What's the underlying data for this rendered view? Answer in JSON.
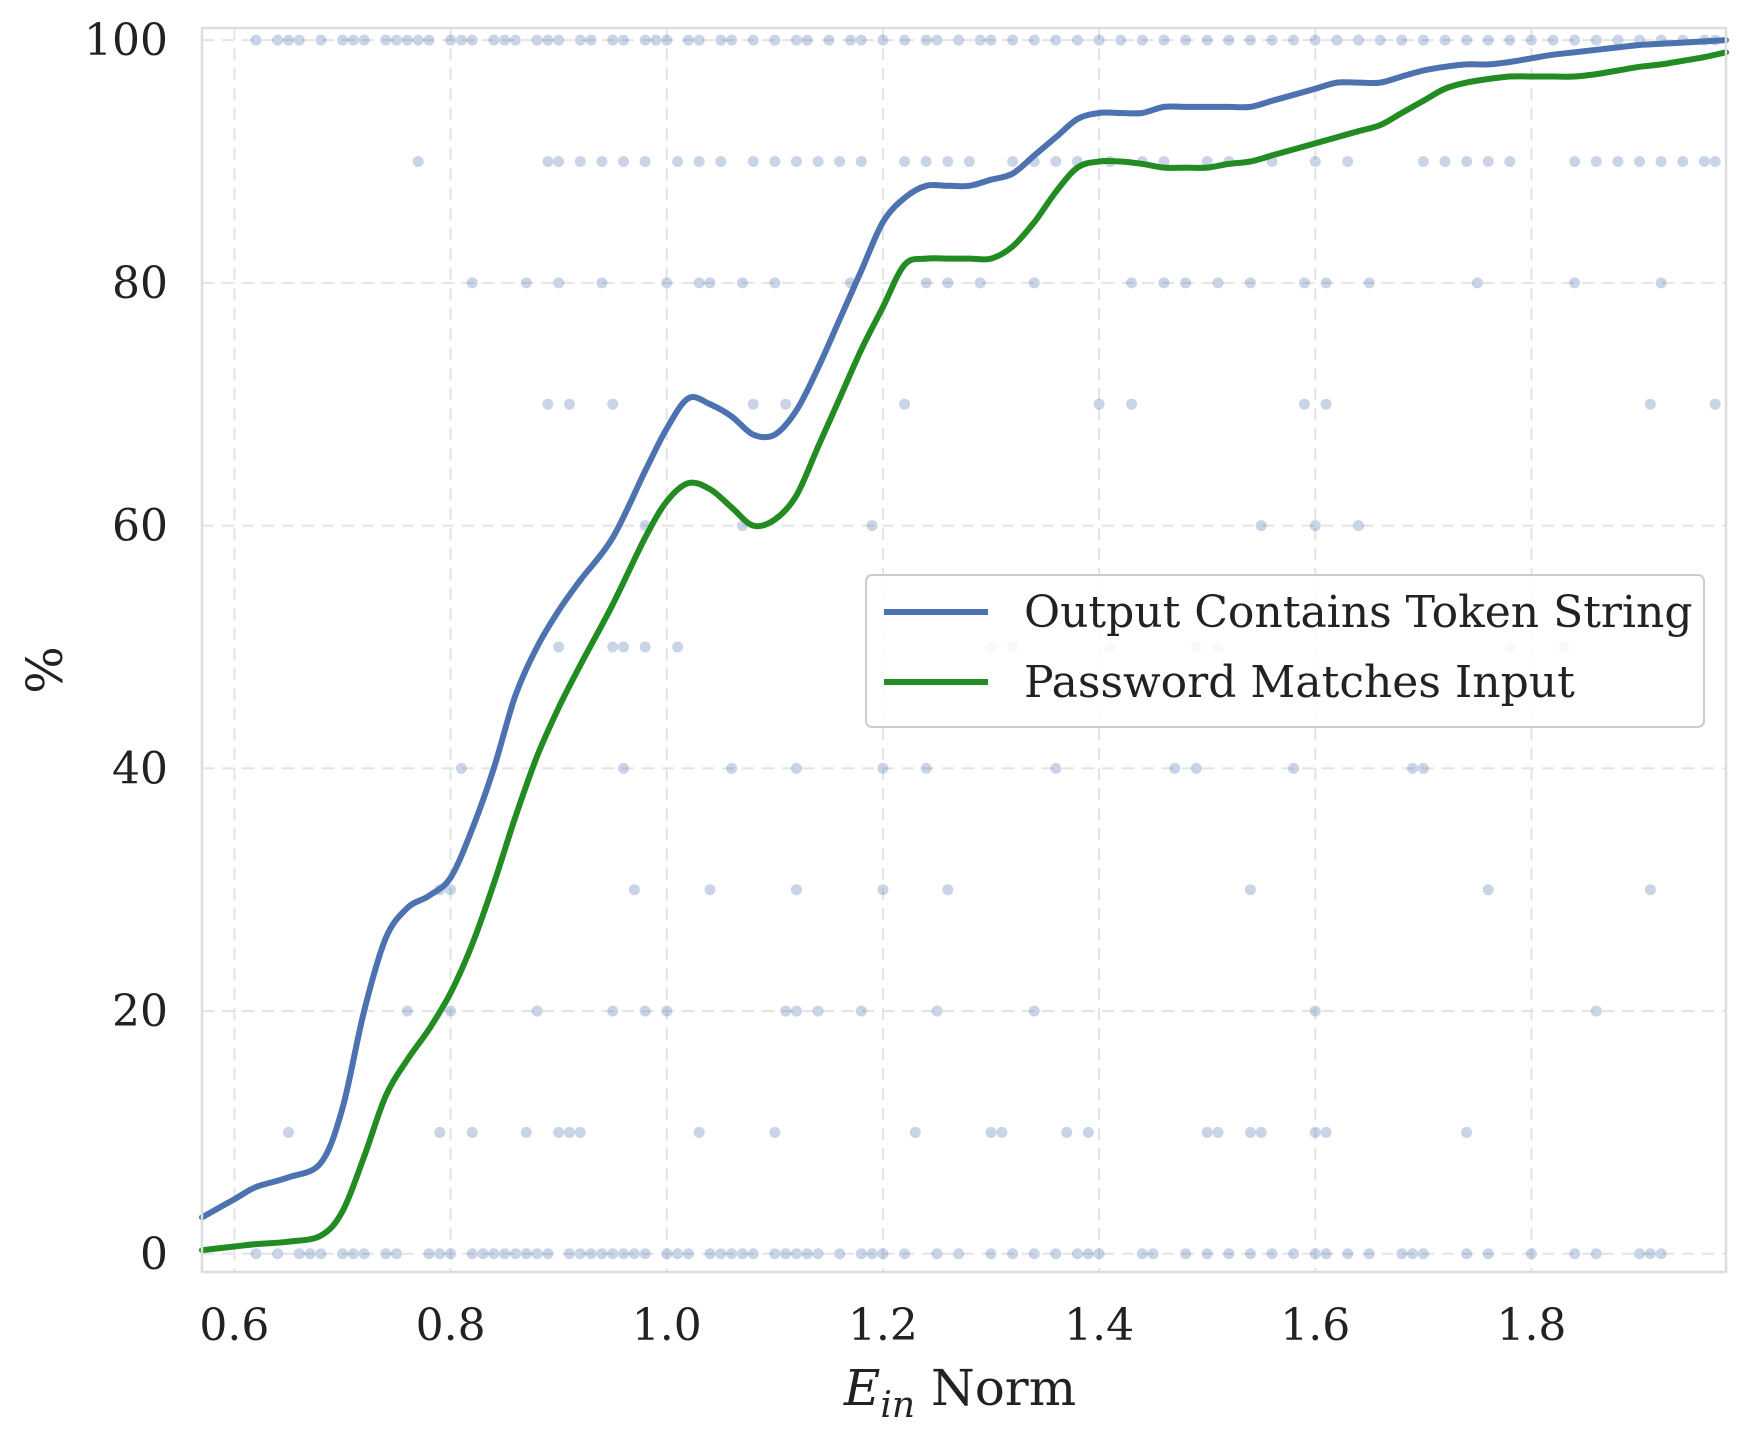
{
  "chart_data": {
    "type": "line",
    "title": "",
    "xlabel": "E_in Norm",
    "xlabel_parts": {
      "symbol": "E",
      "subscript": "in",
      "rest": " Norm"
    },
    "ylabel": "%",
    "xlim": [
      0.57,
      1.98
    ],
    "ylim": [
      -1.5,
      101
    ],
    "x_ticks": [
      0.6,
      0.8,
      1.0,
      1.2,
      1.4,
      1.6,
      1.8
    ],
    "x_tick_labels": [
      "0.6",
      "0.8",
      "1.0",
      "1.2",
      "1.4",
      "1.6",
      "1.8"
    ],
    "y_ticks": [
      0,
      20,
      40,
      60,
      80,
      100
    ],
    "y_tick_labels": [
      "0",
      "20",
      "40",
      "60",
      "80",
      "100"
    ],
    "grid": true,
    "legend_position": "center-right",
    "colors": {
      "Output Contains Token String": "#4c72b0",
      "Password Matches Input": "#228b22",
      "scatter": "#4c72b0"
    },
    "series": [
      {
        "name": "Output Contains Token String",
        "x": [
          0.57,
          0.6,
          0.62,
          0.65,
          0.68,
          0.7,
          0.72,
          0.74,
          0.76,
          0.78,
          0.8,
          0.82,
          0.84,
          0.86,
          0.88,
          0.9,
          0.92,
          0.95,
          0.98,
          1.0,
          1.02,
          1.04,
          1.06,
          1.08,
          1.1,
          1.12,
          1.14,
          1.16,
          1.18,
          1.2,
          1.22,
          1.24,
          1.26,
          1.28,
          1.3,
          1.32,
          1.34,
          1.36,
          1.38,
          1.4,
          1.42,
          1.44,
          1.46,
          1.48,
          1.5,
          1.52,
          1.54,
          1.56,
          1.58,
          1.6,
          1.62,
          1.64,
          1.66,
          1.68,
          1.7,
          1.72,
          1.74,
          1.76,
          1.78,
          1.8,
          1.82,
          1.84,
          1.86,
          1.88,
          1.9,
          1.92,
          1.94,
          1.96,
          1.98
        ],
        "y": [
          3,
          4.5,
          5.5,
          6.3,
          7.5,
          12,
          20,
          26,
          28.5,
          29.5,
          31,
          35,
          40,
          46,
          50,
          53,
          55.5,
          59,
          64.5,
          68,
          70.5,
          70,
          69,
          67.5,
          67.5,
          69.5,
          73,
          77,
          81,
          85,
          87,
          88,
          88,
          88,
          88.5,
          89,
          90.5,
          92,
          93.5,
          94,
          94,
          94,
          94.5,
          94.5,
          94.5,
          94.5,
          94.5,
          95,
          95.5,
          96,
          96.5,
          96.5,
          96.5,
          97,
          97.5,
          97.8,
          98,
          98,
          98.2,
          98.5,
          98.8,
          99,
          99.2,
          99.4,
          99.6,
          99.7,
          99.8,
          99.9,
          100
        ]
      },
      {
        "name": "Password Matches Input",
        "x": [
          0.57,
          0.6,
          0.62,
          0.65,
          0.68,
          0.7,
          0.72,
          0.74,
          0.76,
          0.78,
          0.8,
          0.82,
          0.84,
          0.86,
          0.88,
          0.9,
          0.92,
          0.95,
          0.98,
          1.0,
          1.02,
          1.04,
          1.06,
          1.08,
          1.1,
          1.12,
          1.14,
          1.16,
          1.18,
          1.2,
          1.22,
          1.24,
          1.26,
          1.28,
          1.3,
          1.32,
          1.34,
          1.36,
          1.38,
          1.4,
          1.42,
          1.44,
          1.46,
          1.48,
          1.5,
          1.52,
          1.54,
          1.56,
          1.58,
          1.6,
          1.62,
          1.64,
          1.66,
          1.68,
          1.7,
          1.72,
          1.74,
          1.76,
          1.78,
          1.8,
          1.82,
          1.84,
          1.86,
          1.88,
          1.9,
          1.92,
          1.94,
          1.96,
          1.98
        ],
        "y": [
          0.3,
          0.6,
          0.8,
          1,
          1.5,
          3.5,
          8,
          13,
          16,
          18.5,
          21.5,
          25.5,
          30.5,
          36,
          41,
          45,
          48.5,
          53.5,
          59,
          62,
          63.5,
          63,
          61.5,
          60,
          60.5,
          62.5,
          66.5,
          70.5,
          74.5,
          78,
          81.5,
          82,
          82,
          82,
          82,
          83,
          85,
          87.5,
          89.5,
          90,
          90,
          89.8,
          89.5,
          89.5,
          89.5,
          89.8,
          90,
          90.5,
          91,
          91.5,
          92,
          92.5,
          93,
          94,
          95,
          96,
          96.5,
          96.8,
          97,
          97,
          97,
          97,
          97.2,
          97.5,
          97.8,
          98,
          98.3,
          98.6,
          99
        ]
      }
    ],
    "scatter": [
      {
        "y": 100,
        "x": [
          0.62,
          0.64,
          0.65,
          0.66,
          0.68,
          0.7,
          0.71,
          0.72,
          0.74,
          0.75,
          0.76,
          0.77,
          0.78,
          0.8,
          0.81,
          0.82,
          0.84,
          0.85,
          0.86,
          0.88,
          0.89,
          0.9,
          0.92,
          0.93,
          0.95,
          0.96,
          0.98,
          0.99,
          1.0,
          1.02,
          1.03,
          1.05,
          1.06,
          1.08,
          1.1,
          1.12,
          1.13,
          1.15,
          1.17,
          1.18,
          1.2,
          1.22,
          1.24,
          1.25,
          1.27,
          1.29,
          1.3,
          1.32,
          1.34,
          1.36,
          1.38,
          1.4,
          1.42,
          1.44,
          1.46,
          1.48,
          1.5,
          1.52,
          1.54,
          1.56,
          1.58,
          1.6,
          1.62,
          1.64,
          1.66,
          1.68,
          1.7,
          1.72,
          1.74,
          1.76,
          1.78,
          1.8,
          1.82,
          1.84,
          1.86,
          1.88,
          1.9,
          1.92,
          1.94,
          1.96,
          1.97
        ]
      },
      {
        "y": 90,
        "x": [
          0.77,
          0.89,
          0.9,
          0.92,
          0.94,
          0.96,
          0.98,
          1.01,
          1.03,
          1.05,
          1.08,
          1.1,
          1.12,
          1.14,
          1.16,
          1.18,
          1.22,
          1.24,
          1.26,
          1.28,
          1.32,
          1.34,
          1.36,
          1.38,
          1.41,
          1.44,
          1.46,
          1.5,
          1.52,
          1.56,
          1.6,
          1.63,
          1.7,
          1.72,
          1.74,
          1.76,
          1.78,
          1.84,
          1.86,
          1.88,
          1.9,
          1.92,
          1.94,
          1.96,
          1.97
        ]
      },
      {
        "y": 80,
        "x": [
          0.82,
          0.87,
          0.9,
          0.94,
          1.0,
          1.03,
          1.04,
          1.07,
          1.1,
          1.17,
          1.24,
          1.26,
          1.29,
          1.34,
          1.43,
          1.46,
          1.48,
          1.51,
          1.54,
          1.59,
          1.61,
          1.65,
          1.75,
          1.84,
          1.92
        ]
      },
      {
        "y": 70,
        "x": [
          0.89,
          0.91,
          0.95,
          1.08,
          1.11,
          1.22,
          1.4,
          1.43,
          1.59,
          1.61,
          1.91,
          1.97
        ]
      },
      {
        "y": 60,
        "x": [
          0.98,
          1.07,
          1.19,
          1.55,
          1.6,
          1.64
        ]
      },
      {
        "y": 50,
        "x": [
          0.9,
          0.95,
          0.96,
          0.98,
          1.01,
          1.3,
          1.32,
          1.41,
          1.49,
          1.51,
          1.78,
          1.83
        ]
      },
      {
        "y": 40,
        "x": [
          0.81,
          0.96,
          1.06,
          1.12,
          1.2,
          1.24,
          1.36,
          1.47,
          1.49,
          1.58,
          1.69,
          1.7
        ]
      },
      {
        "y": 30,
        "x": [
          0.79,
          0.8,
          0.97,
          1.04,
          1.12,
          1.2,
          1.26,
          1.54,
          1.76,
          1.91
        ]
      },
      {
        "y": 20,
        "x": [
          0.76,
          0.8,
          0.88,
          0.95,
          0.98,
          1.0,
          1.11,
          1.12,
          1.14,
          1.18,
          1.25,
          1.34,
          1.6,
          1.86
        ]
      },
      {
        "y": 10,
        "x": [
          0.65,
          0.79,
          0.82,
          0.87,
          0.9,
          0.91,
          0.92,
          1.03,
          1.1,
          1.23,
          1.3,
          1.31,
          1.37,
          1.39,
          1.5,
          1.51,
          1.54,
          1.55,
          1.6,
          1.61,
          1.74
        ]
      },
      {
        "y": 0,
        "x": [
          0.62,
          0.64,
          0.66,
          0.67,
          0.68,
          0.7,
          0.71,
          0.72,
          0.74,
          0.75,
          0.78,
          0.79,
          0.8,
          0.82,
          0.83,
          0.84,
          0.85,
          0.86,
          0.87,
          0.88,
          0.89,
          0.91,
          0.92,
          0.93,
          0.94,
          0.95,
          0.96,
          0.97,
          0.98,
          1.0,
          1.01,
          1.02,
          1.04,
          1.05,
          1.06,
          1.07,
          1.08,
          1.1,
          1.11,
          1.12,
          1.13,
          1.14,
          1.16,
          1.18,
          1.19,
          1.2,
          1.22,
          1.25,
          1.27,
          1.3,
          1.32,
          1.34,
          1.36,
          1.38,
          1.39,
          1.4,
          1.44,
          1.45,
          1.48,
          1.5,
          1.52,
          1.54,
          1.56,
          1.58,
          1.6,
          1.61,
          1.63,
          1.65,
          1.68,
          1.69,
          1.7,
          1.74,
          1.76,
          1.8,
          1.84,
          1.86,
          1.9,
          1.91,
          1.92
        ]
      }
    ]
  }
}
